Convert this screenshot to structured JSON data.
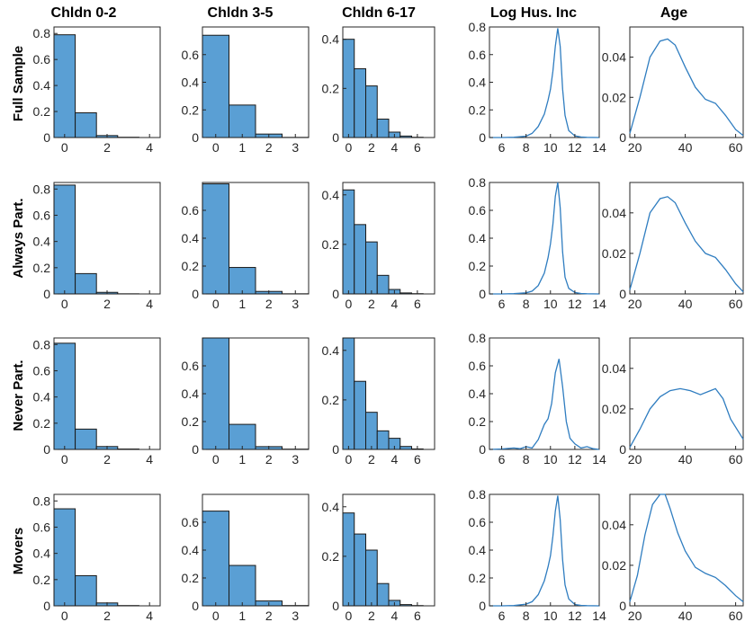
{
  "colors": {
    "bar_fill": "#5a9fd4",
    "curve": "#2f7dc0"
  },
  "chart_data": {
    "type": "histogram-and-density-grid",
    "column_titles": [
      "Chldn 0-2",
      "Chldn 3-5",
      "Chldn 6-17",
      "Log Hus. Inc",
      "Age"
    ],
    "row_labels": [
      "Full Sample",
      "Always Part.",
      "Never Part.",
      "Movers"
    ],
    "columns": [
      {
        "kind": "bar",
        "xlim": [
          -0.5,
          4.5
        ],
        "ylim": [
          0,
          0.85
        ],
        "xticks": [
          0,
          2,
          4
        ],
        "yticks": [
          0,
          0.2,
          0.4,
          0.6,
          0.8
        ]
      },
      {
        "kind": "bar",
        "xlim": [
          -0.5,
          3.5
        ],
        "ylim": [
          0,
          0.8
        ],
        "xticks": [
          0,
          1,
          2,
          3
        ],
        "yticks": [
          0,
          0.2,
          0.4,
          0.6
        ]
      },
      {
        "kind": "bar",
        "xlim": [
          -0.5,
          7.5
        ],
        "ylim": [
          0,
          0.45
        ],
        "xticks": [
          0,
          2,
          4,
          6
        ],
        "yticks": [
          0,
          0.2,
          0.4
        ]
      },
      {
        "kind": "line",
        "xlim": [
          5,
          14
        ],
        "ylim": [
          0,
          0.8
        ],
        "xticks": [
          6,
          8,
          10,
          12,
          14
        ],
        "yticks": [
          0,
          0.2,
          0.4,
          0.6,
          0.8
        ]
      },
      {
        "kind": "line",
        "xlim": [
          18,
          63
        ],
        "ylim": [
          0,
          0.055
        ],
        "xticks": [
          20,
          40,
          60
        ],
        "yticks": [
          0,
          0.02,
          0.04
        ]
      }
    ],
    "panels": [
      [
        {
          "categories": [
            0,
            1,
            2,
            3,
            4
          ],
          "values": [
            0.79,
            0.19,
            0.015,
            0.002,
            0.0
          ]
        },
        {
          "categories": [
            0,
            1,
            2,
            3
          ],
          "values": [
            0.74,
            0.235,
            0.025,
            0.001
          ]
        },
        {
          "categories": [
            0,
            1,
            2,
            3,
            4,
            5,
            6,
            7
          ],
          "values": [
            0.4,
            0.28,
            0.21,
            0.075,
            0.022,
            0.006,
            0.001,
            0.0
          ]
        },
        {
          "x": [
            5,
            6,
            7,
            8,
            8.5,
            9,
            9.5,
            9.8,
            10.0,
            10.2,
            10.4,
            10.6,
            10.8,
            11.0,
            11.2,
            11.5,
            12,
            12.5,
            13,
            14
          ],
          "y": [
            0.0,
            0.0,
            0.002,
            0.01,
            0.03,
            0.08,
            0.17,
            0.27,
            0.35,
            0.48,
            0.66,
            0.79,
            0.66,
            0.35,
            0.16,
            0.05,
            0.012,
            0.004,
            0.001,
            0.0
          ]
        },
        {
          "x": [
            18,
            22,
            26,
            30,
            33,
            36,
            40,
            44,
            48,
            52,
            56,
            60,
            63
          ],
          "y": [
            0.002,
            0.02,
            0.04,
            0.048,
            0.049,
            0.046,
            0.035,
            0.025,
            0.019,
            0.017,
            0.011,
            0.004,
            0.001
          ]
        }
      ],
      [
        {
          "categories": [
            0,
            1,
            2,
            3,
            4
          ],
          "values": [
            0.83,
            0.155,
            0.012,
            0.001,
            0.0
          ]
        },
        {
          "categories": [
            0,
            1,
            2,
            3
          ],
          "values": [
            0.79,
            0.19,
            0.018,
            0.001
          ]
        },
        {
          "categories": [
            0,
            1,
            2,
            3,
            4,
            5,
            6,
            7
          ],
          "values": [
            0.42,
            0.28,
            0.21,
            0.075,
            0.018,
            0.004,
            0.001,
            0.0
          ]
        },
        {
          "x": [
            5,
            6,
            7,
            8,
            8.5,
            9,
            9.5,
            9.8,
            10.0,
            10.2,
            10.4,
            10.6,
            10.8,
            11.0,
            11.2,
            11.5,
            12,
            12.5,
            13,
            14
          ],
          "y": [
            0.0,
            0.0,
            0.002,
            0.008,
            0.02,
            0.06,
            0.15,
            0.26,
            0.36,
            0.5,
            0.7,
            0.8,
            0.62,
            0.3,
            0.12,
            0.04,
            0.01,
            0.003,
            0.001,
            0.0
          ]
        },
        {
          "x": [
            18,
            22,
            26,
            30,
            33,
            36,
            40,
            44,
            48,
            52,
            56,
            60,
            63
          ],
          "y": [
            0.002,
            0.02,
            0.04,
            0.047,
            0.048,
            0.045,
            0.035,
            0.026,
            0.02,
            0.018,
            0.012,
            0.005,
            0.001
          ]
        }
      ],
      [
        {
          "categories": [
            0,
            1,
            2,
            3,
            4
          ],
          "values": [
            0.81,
            0.155,
            0.022,
            0.003,
            0.0
          ]
        },
        {
          "categories": [
            0,
            1,
            2,
            3
          ],
          "values": [
            0.8,
            0.18,
            0.02,
            0.002
          ]
        },
        {
          "categories": [
            0,
            1,
            2,
            3,
            4,
            5,
            6,
            7
          ],
          "values": [
            0.46,
            0.275,
            0.15,
            0.075,
            0.045,
            0.012,
            0.002,
            0.0
          ]
        },
        {
          "x": [
            5,
            6,
            7,
            7.5,
            8,
            8.5,
            9,
            9.5,
            9.8,
            10.1,
            10.4,
            10.7,
            11.0,
            11.3,
            11.6,
            12,
            12.5,
            13,
            13.5,
            14
          ],
          "y": [
            0.0,
            0.003,
            0.01,
            0.005,
            0.02,
            0.01,
            0.07,
            0.18,
            0.22,
            0.33,
            0.55,
            0.65,
            0.45,
            0.2,
            0.08,
            0.04,
            0.01,
            0.02,
            0.005,
            0.0
          ]
        },
        {
          "x": [
            18,
            22,
            26,
            30,
            34,
            38,
            42,
            46,
            50,
            52,
            55,
            58,
            63
          ],
          "y": [
            0.001,
            0.01,
            0.02,
            0.026,
            0.029,
            0.03,
            0.029,
            0.027,
            0.029,
            0.03,
            0.025,
            0.015,
            0.005
          ]
        }
      ],
      [
        {
          "categories": [
            0,
            1,
            2,
            3,
            4
          ],
          "values": [
            0.74,
            0.23,
            0.022,
            0.002,
            0.0
          ]
        },
        {
          "categories": [
            0,
            1,
            2,
            3
          ],
          "values": [
            0.68,
            0.29,
            0.035,
            0.002
          ]
        },
        {
          "categories": [
            0,
            1,
            2,
            3,
            4,
            5,
            6,
            7
          ],
          "values": [
            0.375,
            0.29,
            0.225,
            0.09,
            0.022,
            0.005,
            0.001,
            0.0
          ]
        },
        {
          "x": [
            5,
            6,
            7,
            8,
            8.5,
            9,
            9.5,
            9.8,
            10.0,
            10.2,
            10.4,
            10.6,
            10.8,
            11.0,
            11.2,
            11.5,
            12,
            12.5,
            13,
            14
          ],
          "y": [
            0.0,
            0.0,
            0.002,
            0.012,
            0.03,
            0.08,
            0.18,
            0.28,
            0.36,
            0.5,
            0.68,
            0.79,
            0.62,
            0.33,
            0.15,
            0.05,
            0.01,
            0.003,
            0.001,
            0.0
          ]
        },
        {
          "x": [
            18,
            21,
            24,
            27,
            30,
            32,
            34,
            37,
            40,
            44,
            48,
            52,
            56,
            60,
            63
          ],
          "y": [
            0.002,
            0.015,
            0.035,
            0.05,
            0.056,
            0.055,
            0.048,
            0.036,
            0.027,
            0.019,
            0.016,
            0.014,
            0.01,
            0.005,
            0.002
          ]
        }
      ]
    ]
  }
}
